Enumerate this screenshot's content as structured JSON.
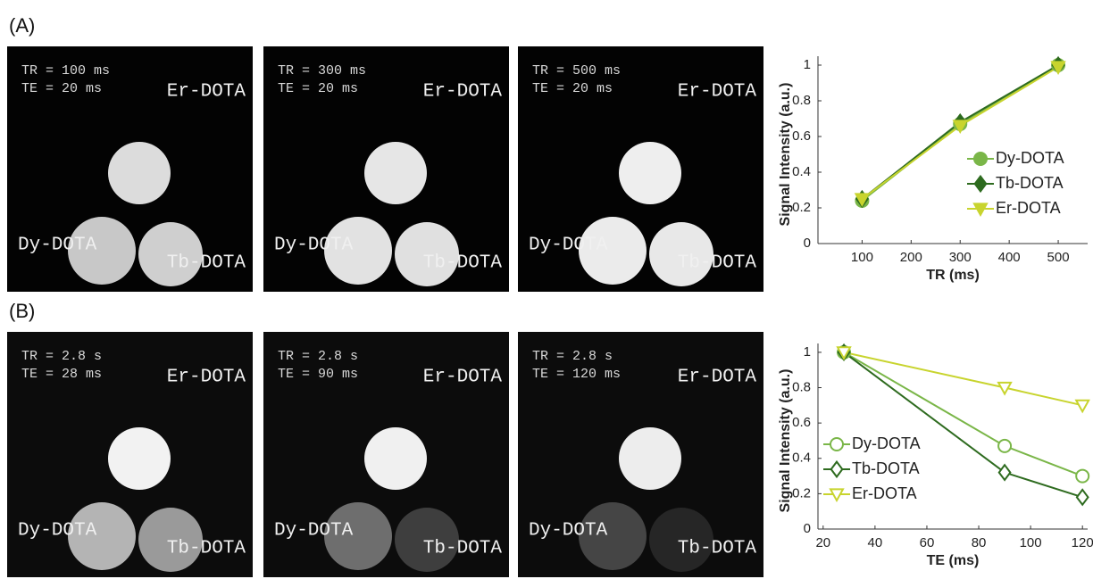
{
  "panels": [
    {
      "label": "(A)",
      "images": [
        {
          "params": [
            "TR = 100 ms",
            "TE = 20 ms"
          ],
          "samples": [
            "Er-DOTA",
            "Dy-DOTA",
            "Tb-DOTA"
          ]
        },
        {
          "params": [
            "TR = 300 ms",
            "TE = 20 ms"
          ],
          "samples": [
            "Er-DOTA",
            "Dy-DOTA",
            "Tb-DOTA"
          ]
        },
        {
          "params": [
            "TR = 500 ms",
            "TE = 20 ms"
          ],
          "samples": [
            "Er-DOTA",
            "Dy-DOTA",
            "Tb-DOTA"
          ]
        }
      ]
    },
    {
      "label": "(B)",
      "images": [
        {
          "params": [
            "TR = 2.8 s",
            "TE = 28 ms"
          ],
          "samples": [
            "Er-DOTA",
            "Dy-DOTA",
            "Tb-DOTA"
          ]
        },
        {
          "params": [
            "TR = 2.8 s",
            "TE = 90 ms"
          ],
          "samples": [
            "Er-DOTA",
            "Dy-DOTA",
            "Tb-DOTA"
          ]
        },
        {
          "params": [
            "TR = 2.8 s",
            "TE = 120 ms"
          ],
          "samples": [
            "Er-DOTA",
            "Dy-DOTA",
            "Tb-DOTA"
          ]
        }
      ]
    }
  ],
  "chart_data": [
    {
      "type": "line",
      "xlabel": "TR (ms)",
      "ylabel": "Signal Intensity (a.u.)",
      "x": [
        100,
        300,
        500
      ],
      "xlim": [
        10,
        560
      ],
      "xticks": [
        100,
        200,
        300,
        400,
        500
      ],
      "ylim": [
        0,
        1.05
      ],
      "yticks": [
        0,
        0.2,
        0.4,
        0.6,
        0.8,
        1
      ],
      "legend": "lower right",
      "marker_fill": true,
      "series": [
        {
          "name": "Dy-DOTA",
          "color": "#7ab648",
          "marker": "circle",
          "values": [
            0.24,
            0.67,
            1.0
          ]
        },
        {
          "name": "Tb-DOTA",
          "color": "#2e6b1f",
          "marker": "diamond",
          "values": [
            0.25,
            0.68,
            1.0
          ]
        },
        {
          "name": "Er-DOTA",
          "color": "#c8d42e",
          "marker": "triangle-down",
          "values": [
            0.25,
            0.66,
            0.99
          ]
        }
      ]
    },
    {
      "type": "line",
      "xlabel": "TE (ms)",
      "ylabel": "Signal Intensity (a.u.)",
      "x": [
        28,
        90,
        120
      ],
      "xlim": [
        18,
        122
      ],
      "xticks": [
        20,
        40,
        60,
        80,
        100,
        120
      ],
      "ylim": [
        0,
        1.05
      ],
      "yticks": [
        0,
        0.2,
        0.4,
        0.6,
        0.8,
        1
      ],
      "legend": "lower left",
      "marker_fill": false,
      "series": [
        {
          "name": "Dy-DOTA",
          "color": "#7ab648",
          "marker": "circle",
          "values": [
            1.0,
            0.47,
            0.3
          ]
        },
        {
          "name": "Tb-DOTA",
          "color": "#2e6b1f",
          "marker": "diamond",
          "values": [
            1.0,
            0.32,
            0.18
          ]
        },
        {
          "name": "Er-DOTA",
          "color": "#c8d42e",
          "marker": "triangle-down",
          "values": [
            1.0,
            0.8,
            0.7
          ]
        }
      ]
    }
  ]
}
